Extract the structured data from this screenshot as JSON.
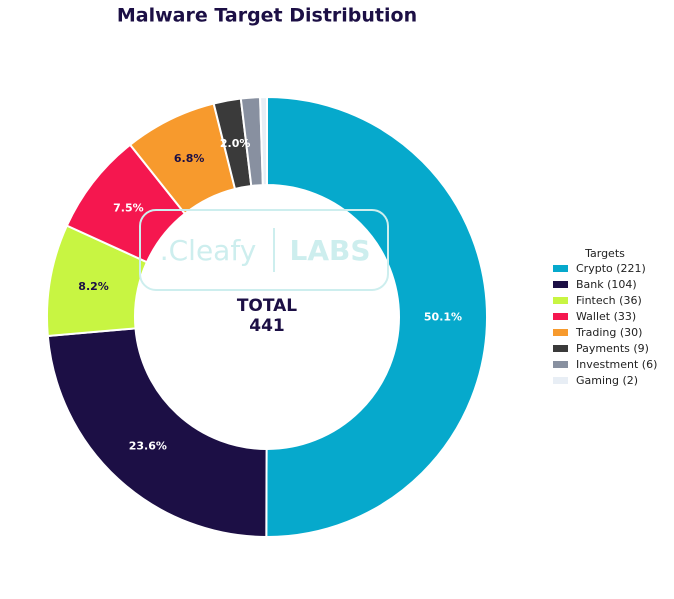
{
  "chart_data": {
    "type": "donut",
    "title": "Malware Target Distribution",
    "categories": [
      "Crypto (221)",
      "Bank (104)",
      "Fintech (36)",
      "Wallet (33)",
      "Trading (30)",
      "Payments (9)",
      "Investment (6)",
      "Gaming (2)"
    ],
    "values": [
      50.1,
      23.6,
      8.2,
      7.5,
      6.8,
      2.0,
      1.4,
      0.5
    ],
    "value_labels": [
      "50.1%",
      "23.6%",
      "8.2%",
      "7.5%",
      "6.8%",
      "2.0%",
      null,
      null
    ],
    "colors": [
      "#06a9cc",
      "#1c0f45",
      "#c8f542",
      "#f5174f",
      "#f79a2d",
      "#3a3a3a",
      "#8890a0",
      "#e8eef5"
    ],
    "center_label": "TOTAL",
    "total": 441,
    "legend_title": "Targets",
    "legend": "right",
    "watermark": {
      "left": ".Cleafy",
      "right": "LABS"
    }
  }
}
